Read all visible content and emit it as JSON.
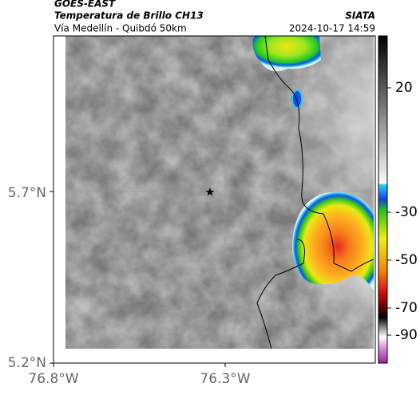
{
  "header": {
    "source": "GOES-EAST",
    "title": "Temperatura de Brillo CH13",
    "agency": "SIATA",
    "subtitle": "Vía Medellín - Quibdó 50km",
    "timestamp": "2024-10-17 14:59"
  },
  "map": {
    "lat_labels": [
      "5.7°N",
      "5.2°N"
    ],
    "lon_labels": [
      "76.8°W",
      "76.3°W"
    ]
  },
  "colorbar": {
    "ticks": [
      20,
      -30,
      -50,
      -70,
      -90
    ]
  }
}
